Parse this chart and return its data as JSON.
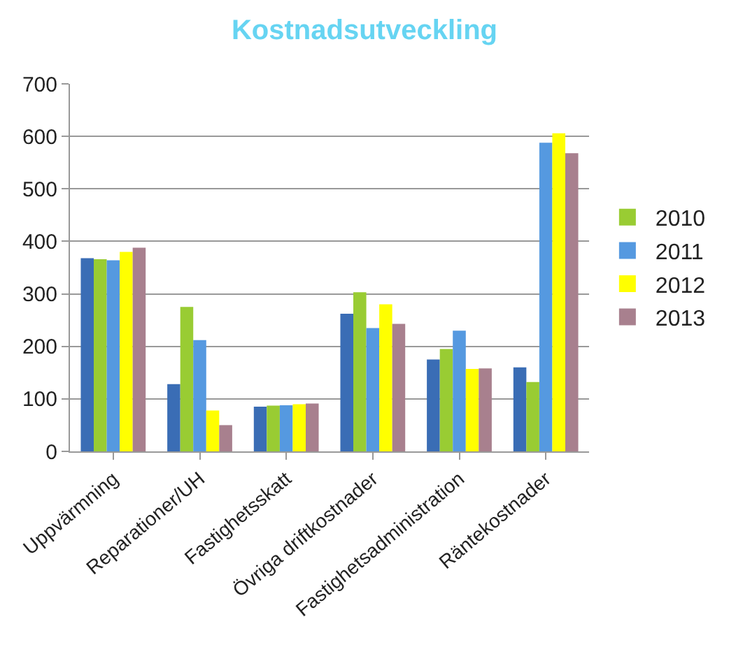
{
  "chart_data": {
    "type": "bar",
    "title": "Kostnadsutveckling",
    "categories": [
      "Uppvärmning",
      "Reparationer/UH",
      "Fastighetsskatt",
      "Övriga driftkostnader",
      "Fastighetsadministration",
      "Räntekostnader"
    ],
    "series": [
      {
        "color": "#3a6db5",
        "values": [
          368,
          128,
          85,
          262,
          175,
          160
        ]
      },
      {
        "name": "2010",
        "color": "#99cc33",
        "values": [
          366,
          275,
          87,
          303,
          195,
          132
        ]
      },
      {
        "name": "2011",
        "color": "#5599e0",
        "values": [
          364,
          212,
          88,
          235,
          230,
          588
        ]
      },
      {
        "name": "2012",
        "color": "#ffff00",
        "values": [
          380,
          78,
          90,
          280,
          157,
          606
        ]
      },
      {
        "name": "2013",
        "color": "#a8808e",
        "values": [
          388,
          50,
          91,
          243,
          158,
          568
        ]
      }
    ],
    "ylim": [
      0,
      700
    ],
    "yticks": [
      0,
      100,
      200,
      300,
      400,
      500,
      600,
      700
    ],
    "grid": "y",
    "legend": "right"
  }
}
